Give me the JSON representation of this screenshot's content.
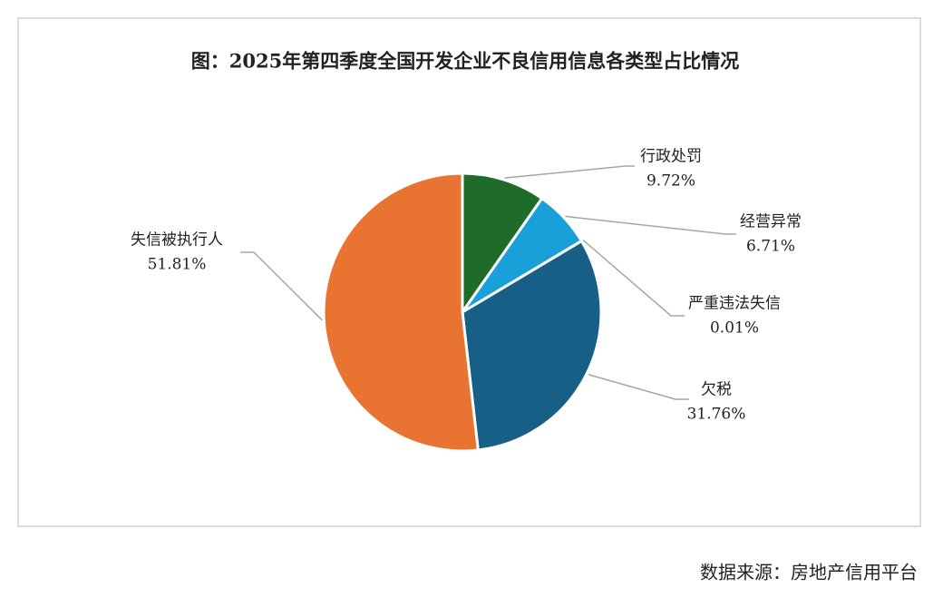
{
  "chart_data": {
    "type": "pie",
    "title": "图：2025年第四季度全国开发企业不良信用信息各类型占比情况",
    "categories": [
      "行政处罚",
      "经营异常",
      "严重违法失信",
      "欠税",
      "失信被执行人"
    ],
    "values": [
      9.72,
      6.71,
      0.01,
      31.76,
      51.81
    ],
    "value_labels": [
      "9.72%",
      "6.71%",
      "0.01%",
      "31.76%",
      "51.81%"
    ],
    "colors": [
      "#1f6b2a",
      "#1aa0d8",
      "#9aa4ad",
      "#175f86",
      "#e97431"
    ]
  },
  "source": "数据来源：房地产信用平台"
}
